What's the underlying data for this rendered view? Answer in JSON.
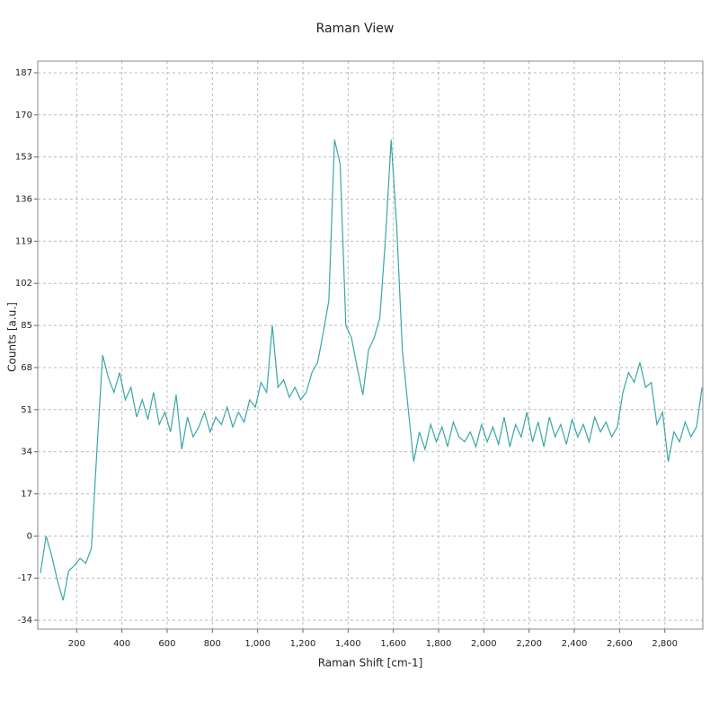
{
  "chart_data": {
    "type": "line",
    "title": "Raman View",
    "x_label": "Raman Shift [cm-1]",
    "y_label": "Counts [a.u.]",
    "xlim": [
      28,
      2968
    ],
    "ylim": [
      -37.6,
      191.7
    ],
    "xticks": [
      200,
      400,
      600,
      800,
      {
        "value": 1000,
        "label": "1,000"
      },
      {
        "value": 1200,
        "label": "1,200"
      },
      {
        "value": 1400,
        "label": "1,400"
      },
      {
        "value": 1600,
        "label": "1,600"
      },
      {
        "value": 1800,
        "label": "1,800"
      },
      {
        "value": 2000,
        "label": "2,000"
      },
      {
        "value": 2200,
        "label": "2,200"
      },
      {
        "value": 2400,
        "label": "2,400"
      },
      {
        "value": 2600,
        "label": "2,600"
      },
      {
        "value": 2800,
        "label": "2,800"
      }
    ],
    "yticks": [
      -34,
      -17,
      0,
      17,
      34,
      51,
      68,
      85,
      102,
      119,
      136,
      153,
      170,
      187
    ],
    "grid": true,
    "x": [
      40,
      65,
      90,
      115,
      140,
      165,
      190,
      215,
      240,
      265,
      290,
      315,
      340,
      365,
      390,
      415,
      440,
      465,
      490,
      515,
      540,
      565,
      590,
      615,
      640,
      665,
      690,
      715,
      740,
      765,
      790,
      815,
      840,
      865,
      890,
      915,
      940,
      965,
      990,
      1015,
      1040,
      1065,
      1090,
      1115,
      1140,
      1165,
      1190,
      1215,
      1240,
      1265,
      1290,
      1315,
      1340,
      1365,
      1390,
      1415,
      1440,
      1465,
      1490,
      1515,
      1540,
      1565,
      1590,
      1615,
      1640,
      1665,
      1690,
      1715,
      1740,
      1765,
      1790,
      1815,
      1840,
      1865,
      1890,
      1915,
      1940,
      1965,
      1990,
      2015,
      2040,
      2065,
      2090,
      2115,
      2140,
      2165,
      2190,
      2215,
      2240,
      2265,
      2290,
      2315,
      2340,
      2365,
      2390,
      2415,
      2440,
      2465,
      2490,
      2515,
      2540,
      2565,
      2590,
      2615,
      2640,
      2665,
      2690,
      2715,
      2740,
      2765,
      2790,
      2815,
      2840,
      2865,
      2890,
      2915,
      2940,
      2965
    ],
    "series": [
      {
        "color": "#3aa6a6",
        "values": [
          -15,
          0,
          -8,
          -18,
          -26,
          -14,
          -12,
          -9,
          -11,
          -5,
          35,
          73,
          64,
          58,
          66,
          55,
          60,
          48,
          55,
          47,
          58,
          45,
          50,
          42,
          57,
          35,
          48,
          40,
          44,
          50,
          42,
          48,
          45,
          52,
          44,
          50,
          46,
          55,
          52,
          62,
          58,
          85,
          60,
          63,
          56,
          60,
          55,
          58,
          66,
          70,
          82,
          95,
          160,
          150,
          85,
          80,
          68,
          57,
          75,
          80,
          88,
          120,
          160,
          125,
          75,
          52,
          30,
          42,
          35,
          45,
          38,
          44,
          36,
          46,
          40,
          38,
          42,
          36,
          45,
          38,
          44,
          37,
          48,
          36,
          45,
          40,
          50,
          38,
          46,
          36,
          48,
          40,
          45,
          37,
          47,
          40,
          45,
          38,
          48,
          42,
          46,
          40,
          44,
          58,
          66,
          62,
          70,
          60,
          62,
          45,
          50,
          30,
          42,
          38,
          46,
          40,
          44,
          60
        ]
      }
    ]
  }
}
